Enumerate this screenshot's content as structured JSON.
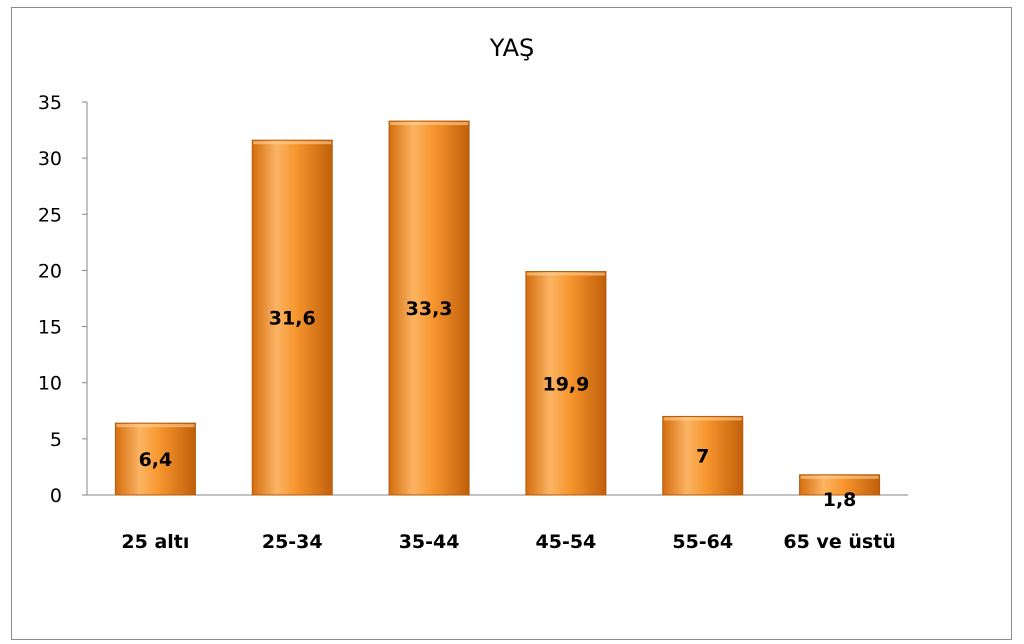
{
  "chart_data": {
    "type": "bar",
    "title": "YAŞ",
    "xlabel": "",
    "ylabel": "",
    "categories": [
      "25 altı",
      "25-34",
      "35-44",
      "45-54",
      "55-64",
      "65 ve üstü"
    ],
    "values": [
      6.4,
      31.6,
      33.3,
      19.9,
      7,
      1.8
    ],
    "data_labels": [
      "6,4",
      "31,6",
      "33,3",
      "19,9",
      "7",
      "1,8"
    ],
    "y_ticks": [
      0,
      5,
      10,
      15,
      20,
      25,
      30,
      35
    ],
    "ylim": [
      0,
      35
    ],
    "grid": false,
    "legend": "none",
    "bar_color": "#f28a1c",
    "bar_highlight": "#fbb463",
    "bar_shadow": "#c05f0a"
  }
}
